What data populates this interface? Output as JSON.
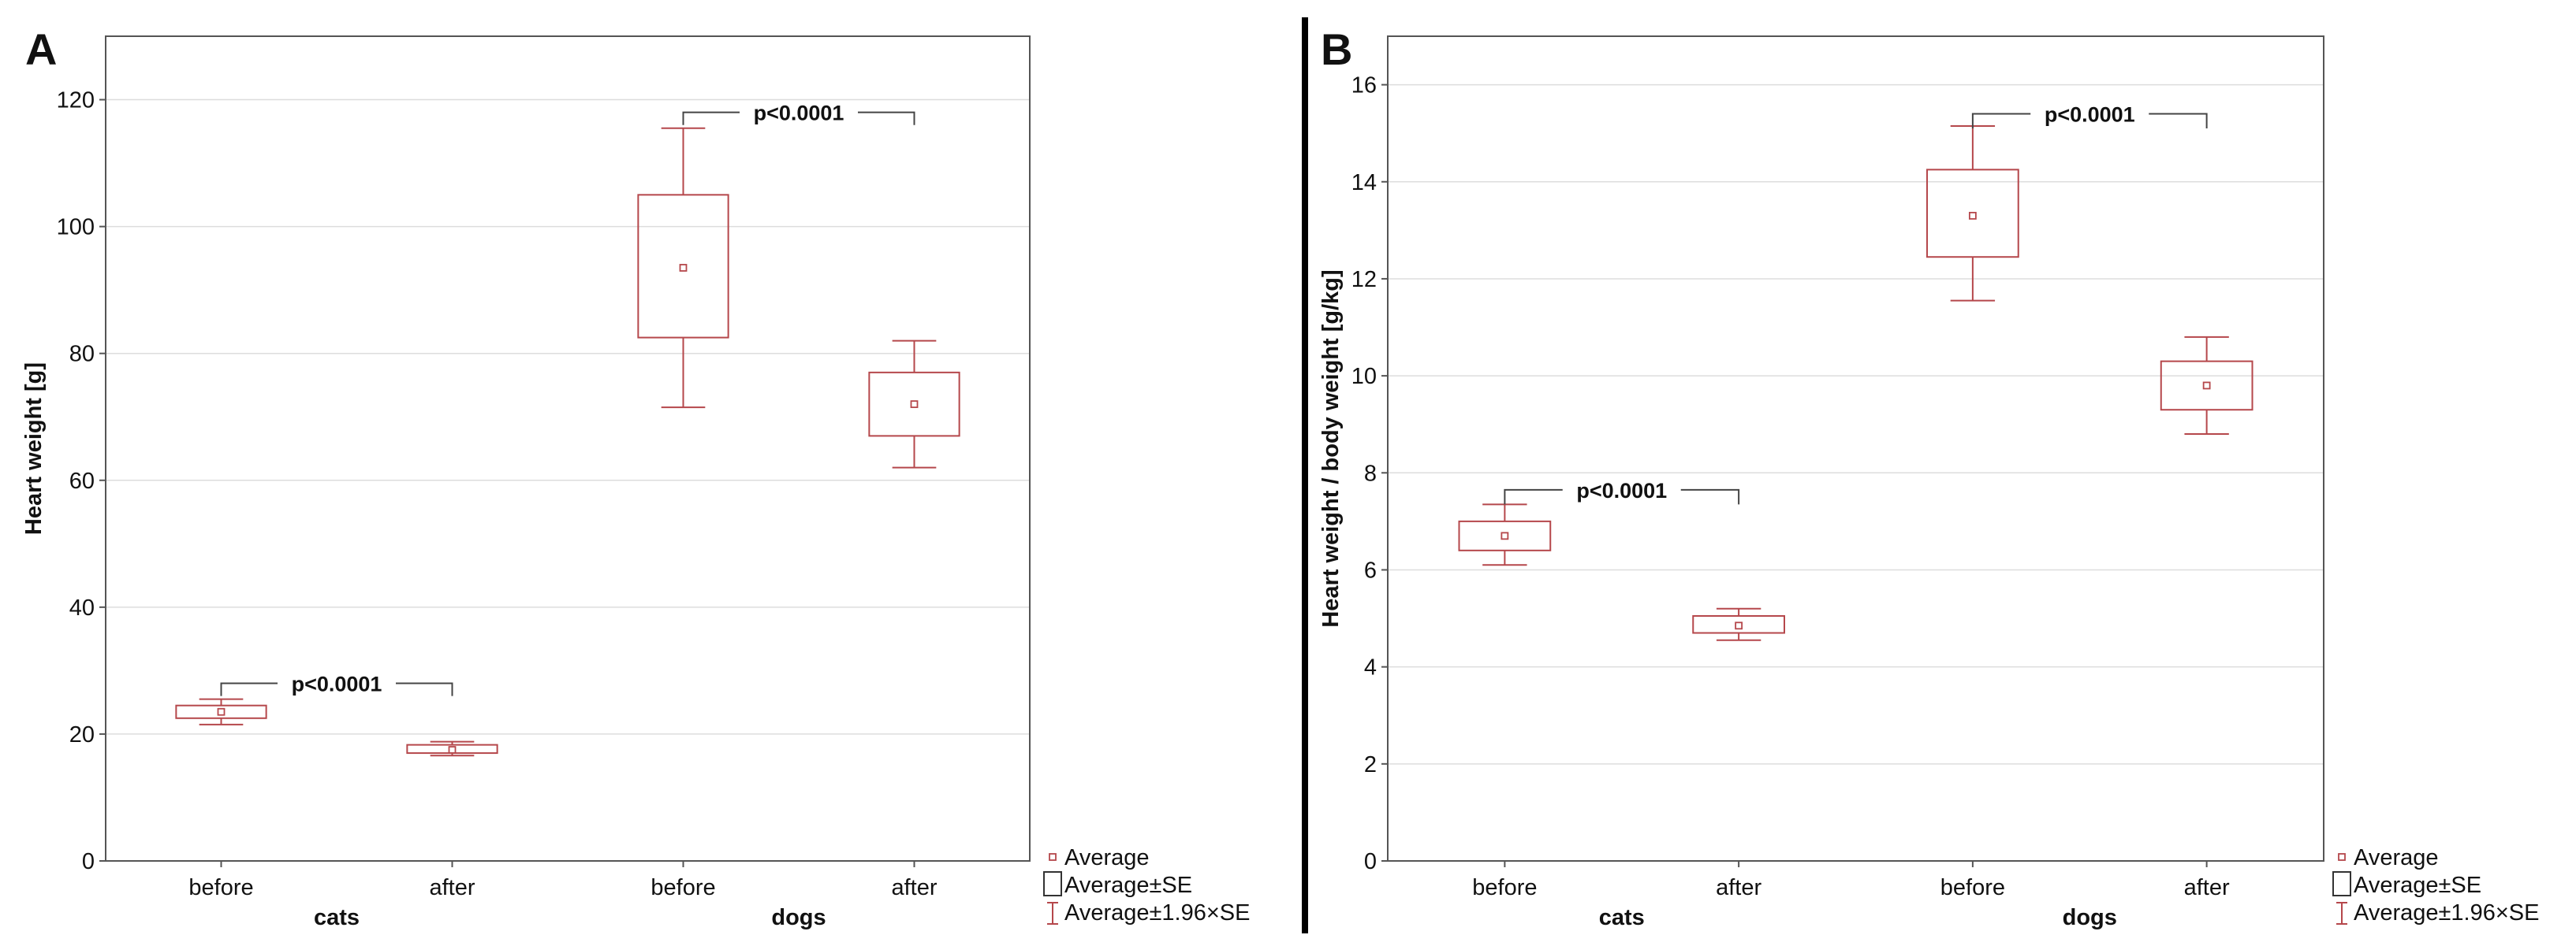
{
  "colors": {
    "box": "#b5474b",
    "axis": "#555555",
    "grid": "#dddddd",
    "text": "#111111",
    "divider": "#000000"
  },
  "legend": {
    "average": "Average",
    "se": "Average±SE",
    "ci": "Average±1.96×SE"
  },
  "chart_data": [
    {
      "type": "box",
      "panel_label": "A",
      "title": "",
      "ylabel": "Heart weight [g]",
      "ylim": [
        0,
        130
      ],
      "yticks": [
        0,
        20,
        40,
        60,
        80,
        100,
        120
      ],
      "grid": true,
      "legend_position": "bottom-right",
      "groups": [
        "cats",
        "dogs"
      ],
      "categories": [
        "before",
        "after",
        "before",
        "after"
      ],
      "series": [
        {
          "group": "cats",
          "label": "before",
          "mean": 23.5,
          "se_low": 22.5,
          "se_high": 24.5,
          "ci_low": 21.5,
          "ci_high": 25.5
        },
        {
          "group": "cats",
          "label": "after",
          "mean": 17.5,
          "se_low": 17.0,
          "se_high": 18.3,
          "ci_low": 16.6,
          "ci_high": 18.8
        },
        {
          "group": "dogs",
          "label": "before",
          "mean": 93.5,
          "se_low": 82.5,
          "se_high": 105.0,
          "ci_low": 71.5,
          "ci_high": 115.5
        },
        {
          "group": "dogs",
          "label": "after",
          "mean": 72.0,
          "se_low": 67.0,
          "se_high": 77.0,
          "ci_low": 62.0,
          "ci_high": 82.0
        }
      ],
      "annotations": [
        {
          "text": "p<0.0001",
          "from": 0,
          "to": 1,
          "y": 28,
          "drop": 2
        },
        {
          "text": "p<0.0001",
          "from": 2,
          "to": 3,
          "y": 118,
          "drop": 2
        }
      ]
    },
    {
      "type": "box",
      "panel_label": "B",
      "title": "",
      "ylabel": "Heart weight / body weight [g/kg]",
      "ylim": [
        0,
        17
      ],
      "yticks": [
        0,
        2,
        4,
        6,
        8,
        10,
        12,
        14,
        16
      ],
      "grid": true,
      "legend_position": "bottom-right",
      "groups": [
        "cats",
        "dogs"
      ],
      "categories": [
        "before",
        "after",
        "before",
        "after"
      ],
      "series": [
        {
          "group": "cats",
          "label": "before",
          "mean": 6.7,
          "se_low": 6.4,
          "se_high": 7.0,
          "ci_low": 6.1,
          "ci_high": 7.35
        },
        {
          "group": "cats",
          "label": "after",
          "mean": 4.85,
          "se_low": 4.7,
          "se_high": 5.05,
          "ci_low": 4.55,
          "ci_high": 5.2
        },
        {
          "group": "dogs",
          "label": "before",
          "mean": 13.3,
          "se_low": 12.45,
          "se_high": 14.25,
          "ci_low": 11.55,
          "ci_high": 15.15
        },
        {
          "group": "dogs",
          "label": "after",
          "mean": 9.8,
          "se_low": 9.3,
          "se_high": 10.3,
          "ci_low": 8.8,
          "ci_high": 10.8
        }
      ],
      "annotations": [
        {
          "text": "p<0.0001",
          "from": 0,
          "to": 1,
          "y": 7.65,
          "drop": 0.3
        },
        {
          "text": "p<0.0001",
          "from": 2,
          "to": 3,
          "y": 15.4,
          "drop": 0.3
        }
      ]
    }
  ]
}
